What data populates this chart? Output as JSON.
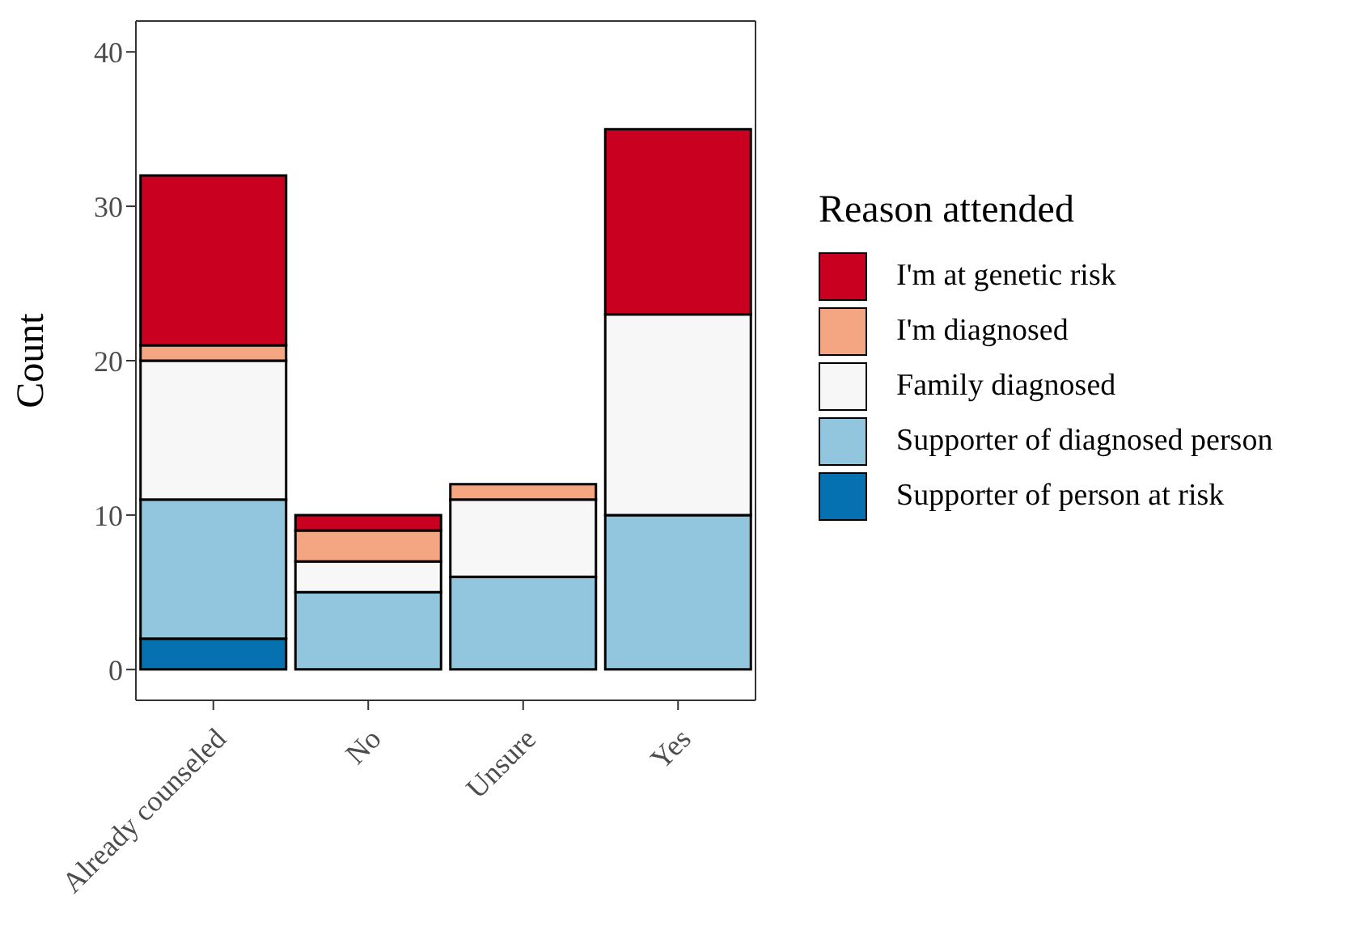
{
  "chart_data": {
    "type": "bar",
    "stacked": true,
    "ylabel": "Count",
    "legend_title": "Reason attended",
    "legend": "right",
    "categories": [
      "Already counseled",
      "No",
      "Unsure",
      "Yes"
    ],
    "series": [
      {
        "name": "Supporter of person at risk",
        "color": "#0571b0",
        "values": [
          2,
          0,
          0,
          0
        ]
      },
      {
        "name": "Supporter of diagnosed person",
        "color": "#92c5de",
        "values": [
          9,
          5,
          6,
          10
        ]
      },
      {
        "name": "Family diagnosed",
        "color": "#f7f7f7",
        "values": [
          9,
          2,
          5,
          13
        ]
      },
      {
        "name": "I'm diagnosed",
        "color": "#f4a582",
        "values": [
          1,
          2,
          1,
          0
        ]
      },
      {
        "name": "I'm at genetic risk",
        "color": "#ca0020",
        "values": [
          11,
          1,
          0,
          12
        ]
      }
    ],
    "ylim": [
      -2,
      42
    ],
    "yticks": [
      0,
      10,
      20,
      30,
      40
    ]
  }
}
